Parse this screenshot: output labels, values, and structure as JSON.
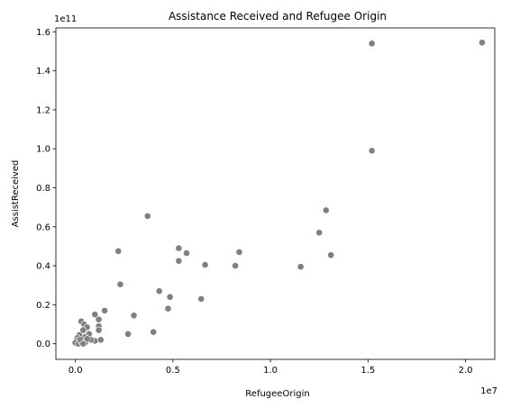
{
  "chart_data": {
    "type": "scatter",
    "title": "Assistance Received and Refugee Origin",
    "xlabel": "RefugeeOrigin",
    "ylabel": "AssistReceived",
    "x_multiplier_label": "1e7",
    "y_multiplier_label": "1e11",
    "xlim": [
      -0.1,
      2.15
    ],
    "ylim": [
      -0.08,
      1.62
    ],
    "x_ticks": [
      0.0,
      0.5,
      1.0,
      1.5,
      2.0
    ],
    "x_tick_labels": [
      "0.0",
      "0.5",
      "1.0",
      "1.5",
      "2.0"
    ],
    "y_ticks": [
      0.0,
      0.2,
      0.4,
      0.6,
      0.8,
      1.0,
      1.2,
      1.4,
      1.6
    ],
    "y_tick_labels": [
      "0.0",
      "0.2",
      "0.4",
      "0.6",
      "0.8",
      "1.0",
      "1.2",
      "1.4",
      "1.6"
    ],
    "grid": false,
    "marker_color": "#808080",
    "marker_edge": "#ffffff",
    "points": [
      {
        "x": 2.085,
        "y": 1.545
      },
      {
        "x": 1.52,
        "y": 1.54
      },
      {
        "x": 1.52,
        "y": 0.99
      },
      {
        "x": 1.285,
        "y": 0.685
      },
      {
        "x": 1.25,
        "y": 0.57
      },
      {
        "x": 1.31,
        "y": 0.455
      },
      {
        "x": 1.155,
        "y": 0.395
      },
      {
        "x": 0.84,
        "y": 0.47
      },
      {
        "x": 0.82,
        "y": 0.4
      },
      {
        "x": 0.665,
        "y": 0.405
      },
      {
        "x": 0.37,
        "y": 0.655
      },
      {
        "x": 0.53,
        "y": 0.49
      },
      {
        "x": 0.57,
        "y": 0.465
      },
      {
        "x": 0.53,
        "y": 0.425
      },
      {
        "x": 0.22,
        "y": 0.475
      },
      {
        "x": 0.23,
        "y": 0.305
      },
      {
        "x": 0.43,
        "y": 0.27
      },
      {
        "x": 0.485,
        "y": 0.24
      },
      {
        "x": 0.645,
        "y": 0.23
      },
      {
        "x": 0.475,
        "y": 0.18
      },
      {
        "x": 0.15,
        "y": 0.17
      },
      {
        "x": 0.3,
        "y": 0.145
      },
      {
        "x": 0.1,
        "y": 0.15
      },
      {
        "x": 0.12,
        "y": 0.125
      },
      {
        "x": 0.12,
        "y": 0.09
      },
      {
        "x": 0.12,
        "y": 0.07
      },
      {
        "x": 0.4,
        "y": 0.06
      },
      {
        "x": 0.27,
        "y": 0.05
      },
      {
        "x": 0.13,
        "y": 0.02
      },
      {
        "x": 0.1,
        "y": 0.015
      },
      {
        "x": 0.03,
        "y": 0.115
      },
      {
        "x": 0.045,
        "y": 0.1
      },
      {
        "x": 0.06,
        "y": 0.085
      },
      {
        "x": 0.04,
        "y": 0.07
      },
      {
        "x": 0.07,
        "y": 0.05
      },
      {
        "x": 0.05,
        "y": 0.035
      },
      {
        "x": 0.08,
        "y": 0.02
      },
      {
        "x": 0.02,
        "y": 0.045
      },
      {
        "x": 0.01,
        "y": 0.03
      },
      {
        "x": 0.005,
        "y": 0.015
      },
      {
        "x": 0.0,
        "y": 0.005
      },
      {
        "x": 0.015,
        "y": 0.0
      },
      {
        "x": 0.03,
        "y": 0.01
      },
      {
        "x": 0.05,
        "y": 0.005
      },
      {
        "x": 0.025,
        "y": 0.02
      },
      {
        "x": 0.06,
        "y": 0.025
      },
      {
        "x": 0.04,
        "y": 0.0
      }
    ]
  }
}
